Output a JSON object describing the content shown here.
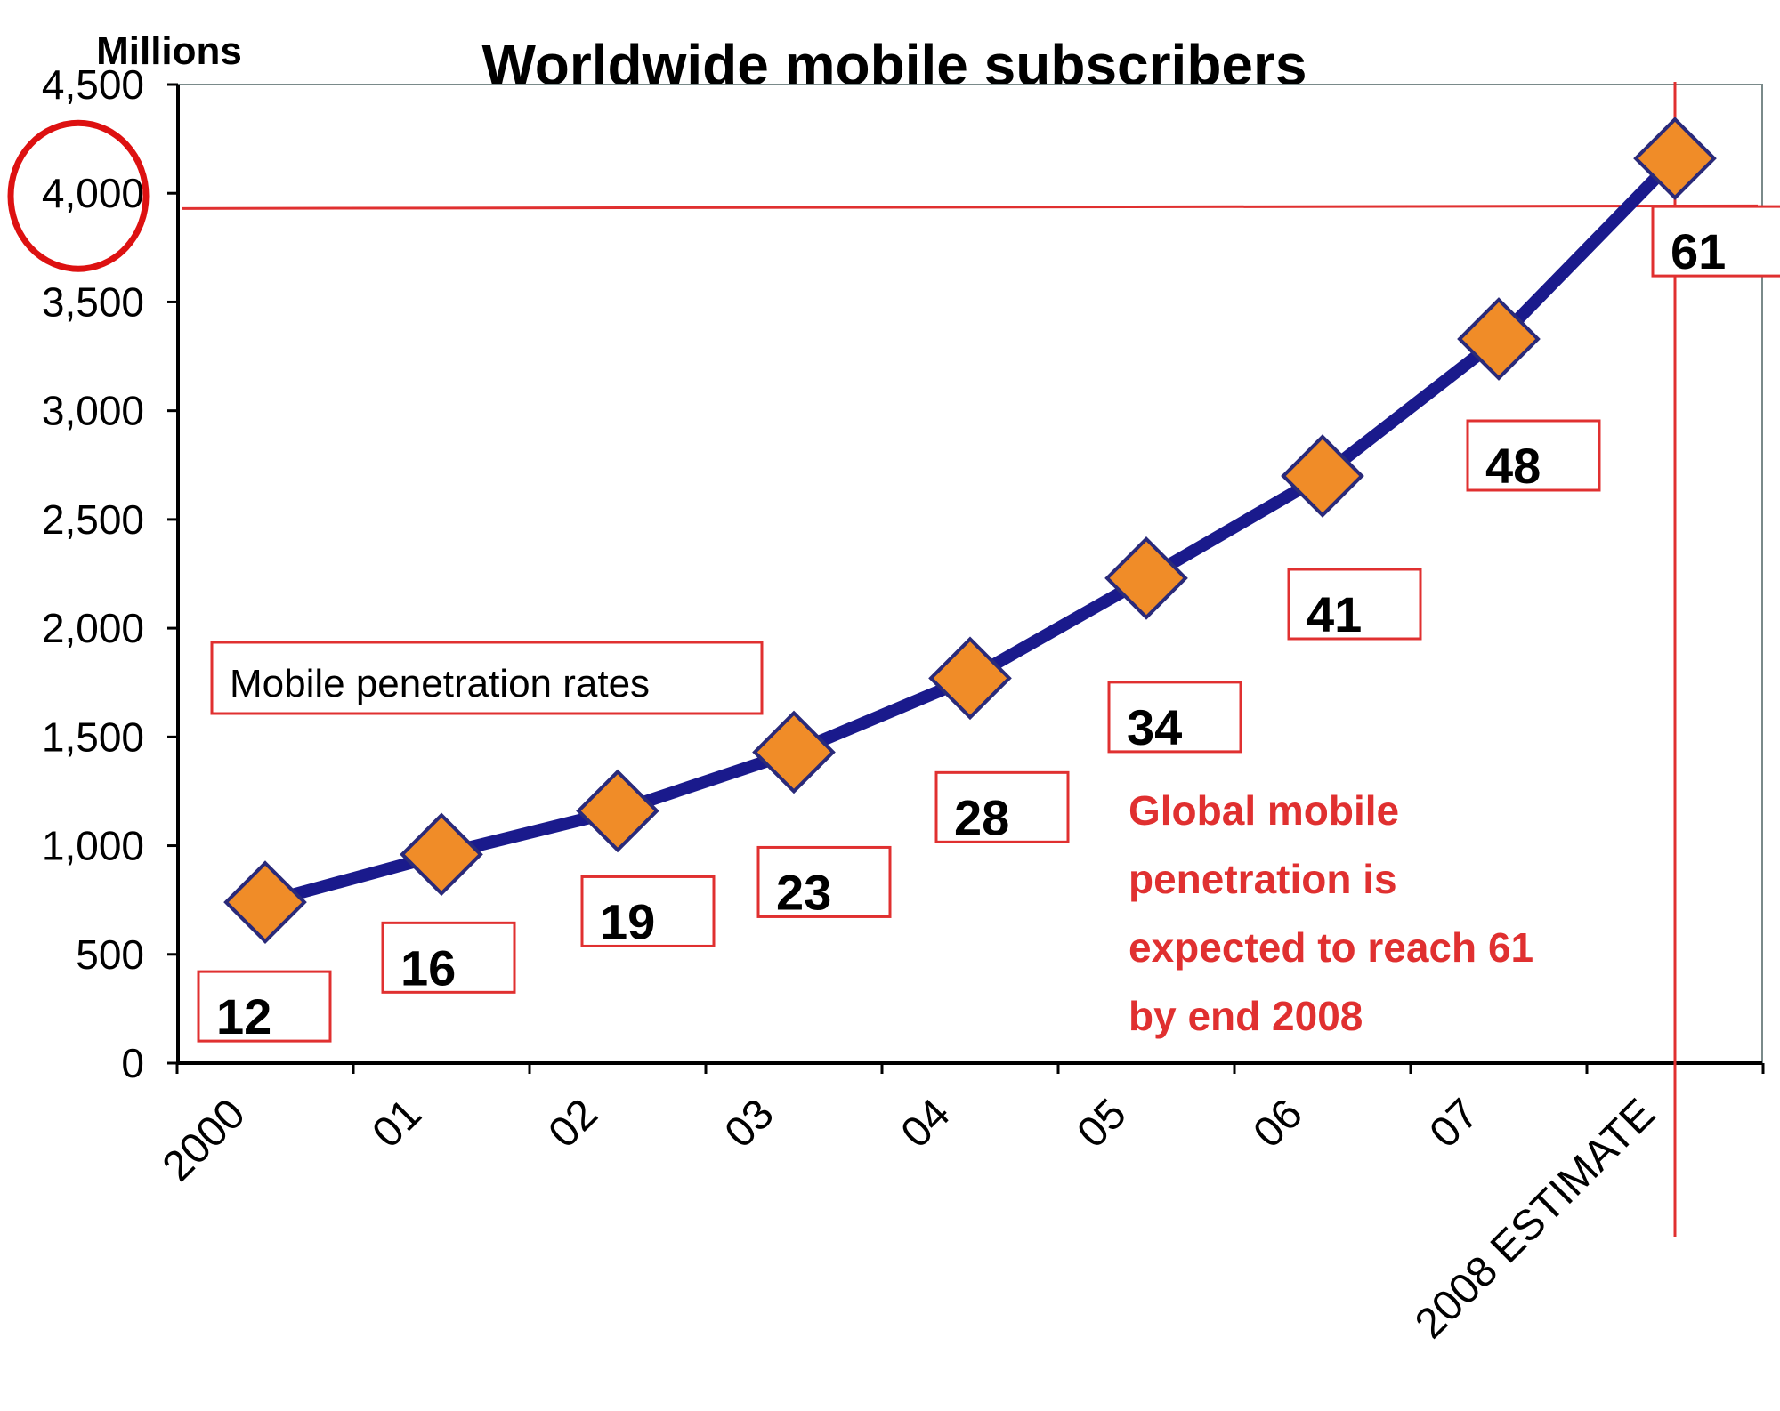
{
  "chart_data": {
    "type": "line",
    "title": "Worldwide mobile subscribers",
    "ylabel": "Millions",
    "xlabel": "",
    "categories": [
      "2000",
      "01",
      "02",
      "03",
      "04",
      "05",
      "06",
      "07",
      "2008 ESTIMATE"
    ],
    "series": [
      {
        "values": [
          740,
          960,
          1160,
          1430,
          1770,
          2230,
          2700,
          3330,
          4160
        ],
        "penetration_rates": [
          "12",
          "16",
          "19",
          "23",
          "28",
          "34",
          "41",
          "48",
          "61"
        ]
      }
    ],
    "ylim": [
      0,
      4500
    ],
    "yticks": [
      "0",
      "500",
      "1,000",
      "1,500",
      "2,000",
      "2,500",
      "3,000",
      "3,500",
      "4,000",
      "4,500"
    ],
    "grid": false,
    "legend_box_label": "Mobile penetration rates",
    "annotation_lines": [
      "Global mobile",
      "penetration is",
      "expected to reach 61",
      "by end 2008"
    ],
    "reference_line_value": 3930,
    "highlighted_tick": "4,000",
    "colors": {
      "line": "#1a1a8c",
      "marker_fill": "#f08c28",
      "marker_stroke": "#2a2a7a",
      "label_box_stroke": "#e03030",
      "annotation": "#e03030",
      "reference_line": "#e03030",
      "axis": "#000000"
    }
  }
}
